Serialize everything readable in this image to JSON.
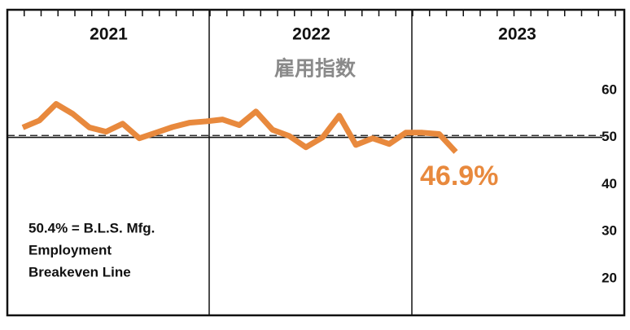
{
  "chart_data": {
    "type": "line",
    "title": "雇用指数",
    "year_labels": [
      "2021",
      "2022",
      "2023"
    ],
    "categories": [
      null,
      null,
      null,
      null,
      null,
      null,
      null,
      null,
      null,
      null,
      null,
      null,
      null,
      null,
      null,
      null,
      null,
      null,
      null,
      null,
      null,
      null,
      null,
      null,
      null,
      null,
      null
    ],
    "values": [
      52.1,
      53.6,
      57.1,
      55.0,
      52.1,
      51.2,
      52.9,
      49.8,
      51.0,
      52.2,
      53.1,
      53.4,
      53.8,
      52.6,
      55.5,
      51.6,
      50.3,
      47.9,
      50.0,
      54.6,
      48.4,
      49.8,
      48.6,
      51.0,
      51.0,
      50.7,
      46.9
    ],
    "value_labels": [
      null,
      null,
      null,
      null,
      null,
      null,
      null,
      null,
      null,
      null,
      null,
      null,
      null,
      null,
      null,
      null,
      null,
      null,
      null,
      null,
      null,
      null,
      null,
      null,
      null,
      null,
      "46.9%"
    ],
    "color": "#e8893d",
    "ylim": [
      12.2,
      77.1
    ],
    "yticks": [
      20,
      30,
      40,
      50,
      60
    ],
    "reference_lines": [
      {
        "value": 50,
        "style": "solid"
      },
      {
        "value": 50.4,
        "style": "dashed"
      }
    ],
    "annotation": [
      "50.4% = B.L.S. Mfg.",
      "Employment",
      "Breakeven Line"
    ]
  }
}
